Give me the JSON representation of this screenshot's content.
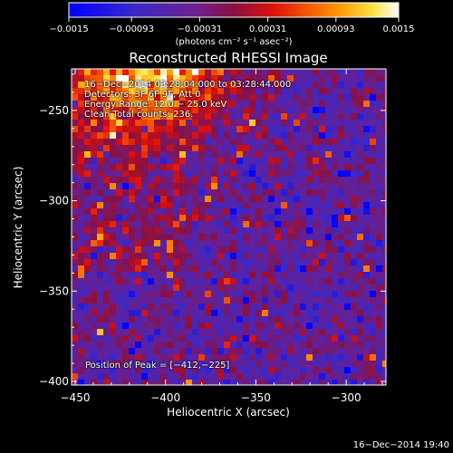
{
  "chart_data": {
    "type": "heatmap",
    "title": "Reconstructed RHESSI Image",
    "xlabel": "Heliocentric X (arcsec)",
    "ylabel": "Heliocentric Y (arcsec)",
    "xlim": [
      -452,
      -278
    ],
    "ylim": [
      -402,
      -227
    ],
    "x_ticks": [
      -450,
      -400,
      -350,
      -300
    ],
    "x_tick_labels": [
      "−450",
      "−400",
      "−350",
      "−300"
    ],
    "y_ticks": [
      -250,
      -300,
      -350,
      -400
    ],
    "y_tick_labels": [
      "−250",
      "−300",
      "−350",
      "−400"
    ],
    "colorbar": {
      "range": [
        -0.0015,
        0.0015
      ],
      "ticks": [
        -0.0015,
        -0.00093,
        -0.00031,
        0.00031,
        0.00093,
        0.0015
      ],
      "tick_labels": [
        "−0.0015",
        "−0.00093",
        "−0.00031",
        "0.00031",
        "0.00093",
        "0.0015"
      ],
      "unit_label": "(photons cm⁻² s⁻¹ asec⁻²)",
      "colors": [
        "#0000ff",
        "#5a2aa8",
        "#7a1e6a",
        "#c01010",
        "#ff6000",
        "#ffc000",
        "#ffffff"
      ]
    },
    "peak": [
      -412,
      -225
    ],
    "grid": false,
    "legend": "none"
  },
  "annotations": {
    "line1": "16−Dec−2014 03:28:04.000 to 03:28:44.000",
    "line2": "Detectors: 3F 6F 9F, Att 0",
    "line3": "Energy Range: 12.0 − 25.0 keV",
    "line4": "Clean      Total counts: 236.",
    "peak_text": "Position of Peak = [−412,−225]"
  },
  "footer": {
    "timestamp": "16−Dec−2014 19:40"
  }
}
